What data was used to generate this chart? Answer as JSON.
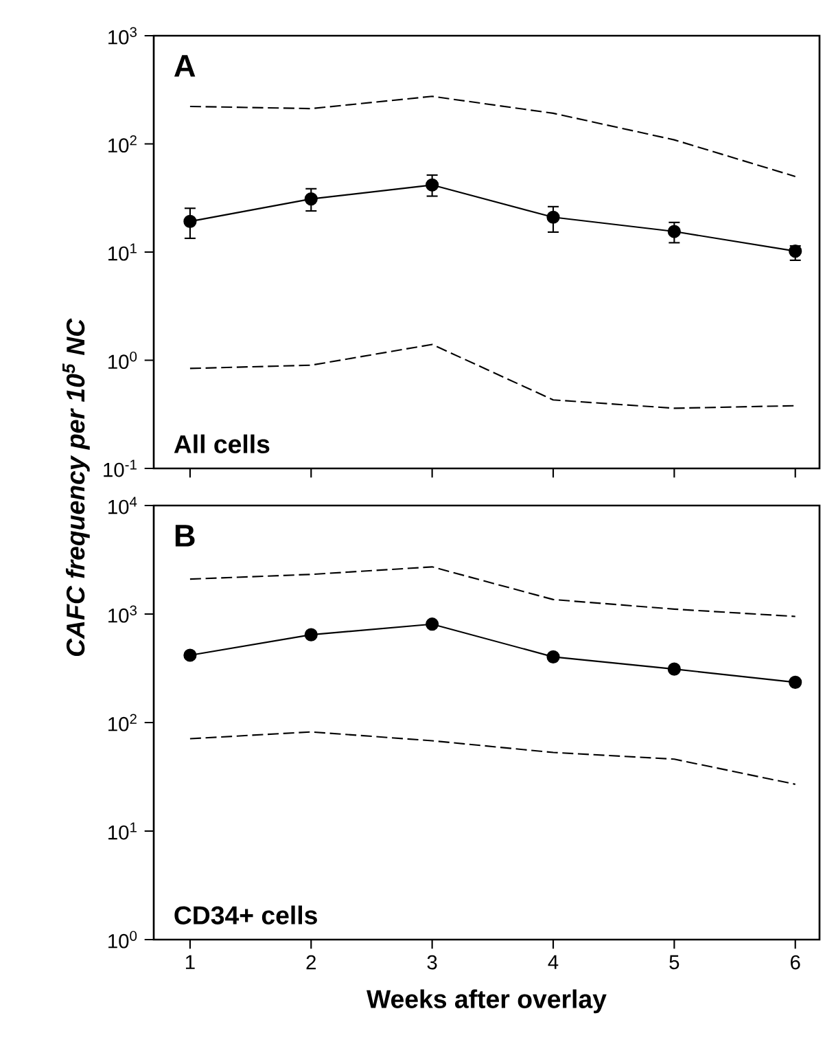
{
  "chart_data": [
    {
      "type": "line",
      "annotations": [
        "A",
        "All cells"
      ],
      "ylabel": "CAFC frequency per 10$^{5}$ NC",
      "x": [
        1,
        2,
        3,
        4,
        5,
        6
      ],
      "xlim": [
        0.7,
        6.2
      ],
      "xticks": [
        1,
        2,
        3,
        4,
        5,
        6
      ],
      "log": "y",
      "ylim": [
        0.1,
        1000
      ],
      "yticks": [
        {
          "value": 0.1,
          "label": "10$^{-1}$"
        },
        {
          "value": 1,
          "label": "10$^{0}$"
        },
        {
          "value": 10,
          "label": "10$^{1}$"
        },
        {
          "value": 100,
          "label": "10$^{2}$"
        },
        {
          "value": 1000,
          "label": "10$^{3}$"
        }
      ],
      "tick_labels": "y",
      "series": [
        {
          "color": "#000000",
          "line_style": "dashed",
          "marker": "none",
          "values": [
            222,
            212,
            275,
            192,
            109,
            50
          ]
        },
        {
          "color": "#000000",
          "line_style": "solid",
          "marker": "circle",
          "values": [
            19.2,
            31,
            41.7,
            21,
            15.5,
            10.2
          ],
          "errors": [
            [
              13.4,
              25.4
            ],
            [
              24,
              38.5
            ],
            [
              32.9,
              51.5
            ],
            [
              15.3,
              26.3
            ],
            [
              12.2,
              18.8
            ],
            [
              8.4,
              11.4
            ]
          ]
        },
        {
          "color": "#000000",
          "line_style": "dashed",
          "marker": "none",
          "values": [
            0.84,
            0.9,
            1.4,
            0.43,
            0.36,
            0.38
          ]
        }
      ]
    },
    {
      "type": "line",
      "annotations": [
        "B",
        "CD34+ cells"
      ],
      "xlabel": "Weeks after overlay",
      "x": [
        1,
        2,
        3,
        4,
        5,
        6
      ],
      "xlim": [
        0.7,
        6.2
      ],
      "xticks": [
        1,
        2,
        3,
        4,
        5,
        6
      ],
      "log": "y",
      "ylim": [
        1,
        10000
      ],
      "yticks": [
        {
          "value": 1,
          "label": "10$^{0}$"
        },
        {
          "value": 10,
          "label": "10$^{1}$"
        },
        {
          "value": 100,
          "label": "10$^{2}$"
        },
        {
          "value": 1000,
          "label": "10$^{3}$"
        },
        {
          "value": 10000,
          "label": "10$^{4}$"
        }
      ],
      "series": [
        {
          "color": "#000000",
          "line_style": "dashed",
          "marker": "none",
          "values": [
            2100,
            2320,
            2720,
            1360,
            1110,
            950
          ]
        },
        {
          "color": "#000000",
          "line_style": "solid",
          "marker": "circle",
          "values": [
            417,
            645,
            807,
            403,
            311,
            235
          ]
        },
        {
          "color": "#000000",
          "line_style": "dashed",
          "marker": "none",
          "values": [
            71,
            82,
            68,
            53,
            46,
            27
          ]
        }
      ]
    }
  ]
}
